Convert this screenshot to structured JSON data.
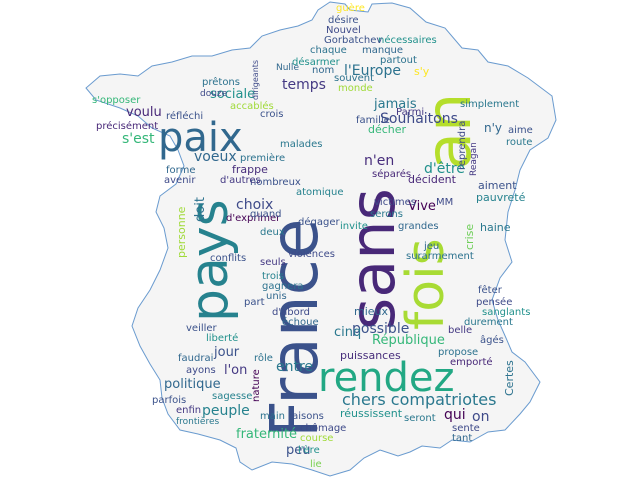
{
  "shape": {
    "name": "france-map-outline",
    "fill": "#f5f5f5",
    "stroke": "#6a9bcf"
  },
  "palette": [
    "#440154",
    "#3b528b",
    "#21918c",
    "#5ec962",
    "#fde725"
  ],
  "words": [
    {
      "t": "France",
      "c": "#3b528b"
    },
    {
      "t": "sans",
      "c": "#482878"
    },
    {
      "t": "fois",
      "c": "#a8db34"
    },
    {
      "t": "an",
      "c": "#b5de2b"
    },
    {
      "t": "pays",
      "c": "#26828e"
    },
    {
      "t": "paix",
      "c": "#31688e"
    },
    {
      "t": "rendez",
      "c": "#22a884"
    },
    {
      "t": "chers compatriotes",
      "c": "#2a788e"
    },
    {
      "t": "l'Europe",
      "c": "#2c728e"
    },
    {
      "t": "Souhaitons",
      "c": "#3e4a89"
    },
    {
      "t": "République",
      "c": "#35b779"
    },
    {
      "t": "possible",
      "c": "#3b528b"
    },
    {
      "t": "jamais",
      "c": "#2a788e"
    },
    {
      "t": "n'en",
      "c": "#472d7b"
    },
    {
      "t": "d'être",
      "c": "#21918c"
    },
    {
      "t": "Vive",
      "c": "#440154"
    },
    {
      "t": "voeux",
      "c": "#31688e"
    },
    {
      "t": "sociale",
      "c": "#21918c"
    },
    {
      "t": "s'est",
      "c": "#35b779"
    },
    {
      "t": "voulu",
      "c": "#482878"
    },
    {
      "t": "temps",
      "c": "#443983"
    },
    {
      "t": "choix",
      "c": "#3e4a89"
    },
    {
      "t": "doit",
      "c": "#2c728e"
    },
    {
      "t": "entre",
      "c": "#2a788e"
    },
    {
      "t": "jour",
      "c": "#3b528b"
    },
    {
      "t": "l'on",
      "c": "#443983"
    },
    {
      "t": "peuple",
      "c": "#26828e"
    },
    {
      "t": "politique",
      "c": "#31688e"
    },
    {
      "t": "puissances",
      "c": "#472d7b"
    },
    {
      "t": "cinq",
      "c": "#2a788e"
    },
    {
      "t": "fraternité",
      "c": "#35b779"
    },
    {
      "t": "peu",
      "c": "#3b528b"
    },
    {
      "t": "réussissent",
      "c": "#21918c"
    },
    {
      "t": "qui",
      "c": "#440154"
    },
    {
      "t": "on",
      "c": "#3e4a89"
    },
    {
      "t": "mieux",
      "c": "#31688e"
    },
    {
      "t": "Certes",
      "c": "#2c728e"
    },
    {
      "t": "crise",
      "c": "#6ece58"
    },
    {
      "t": "haine",
      "c": "#2a788e"
    },
    {
      "t": "aiment",
      "c": "#3b528b"
    },
    {
      "t": "pauvreté",
      "c": "#26828e"
    },
    {
      "t": "décident",
      "c": "#482878"
    },
    {
      "t": "simplement",
      "c": "#2a788e"
    },
    {
      "t": "reprendra",
      "c": "#3e4a89"
    },
    {
      "t": "n'y",
      "c": "#31688e"
    },
    {
      "t": "aime",
      "c": "#3b528b"
    },
    {
      "t": "route",
      "c": "#2a788e"
    },
    {
      "t": "Reagan",
      "c": "#443983"
    },
    {
      "t": "nécessaires",
      "c": "#21918c"
    },
    {
      "t": "désire",
      "c": "#3b528b"
    },
    {
      "t": "chaque",
      "c": "#2c728e"
    },
    {
      "t": "manque",
      "c": "#31688e"
    },
    {
      "t": "Nouvel",
      "c": "#3e4a89"
    },
    {
      "t": "Gorbatchev",
      "c": "#3b528b"
    },
    {
      "t": "désarmer",
      "c": "#21918c"
    },
    {
      "t": "souvent",
      "c": "#2c728e"
    },
    {
      "t": "monde",
      "c": "#a0da39"
    },
    {
      "t": "nom",
      "c": "#31688e"
    },
    {
      "t": "s'y",
      "c": "#fde725"
    },
    {
      "t": "famille",
      "c": "#3b528b"
    },
    {
      "t": "Parmi",
      "c": "#443983"
    },
    {
      "t": "décher",
      "c": "#35b779"
    },
    {
      "t": "frappe",
      "c": "#472d7b"
    },
    {
      "t": "nombreux",
      "c": "#3b528b"
    },
    {
      "t": "atomique",
      "c": "#26828e"
    },
    {
      "t": "séparés",
      "c": "#482878"
    },
    {
      "t": "victimes",
      "c": "#3e4a89"
    },
    {
      "t": "serons",
      "c": "#2a788e"
    },
    {
      "t": "grandes",
      "c": "#31688e"
    },
    {
      "t": "MM",
      "c": "#3e4a89"
    },
    {
      "t": "invite",
      "c": "#21918c"
    },
    {
      "t": "dégager",
      "c": "#3b528b"
    },
    {
      "t": "jeu",
      "c": "#31688e"
    },
    {
      "t": "surarmement",
      "c": "#2c728e"
    },
    {
      "t": "fêter",
      "c": "#3b528b"
    },
    {
      "t": "pensée",
      "c": "#3e4a89"
    },
    {
      "t": "sanglants",
      "c": "#21918c"
    },
    {
      "t": "durement",
      "c": "#2a788e"
    },
    {
      "t": "belle",
      "c": "#443983"
    },
    {
      "t": "âgés",
      "c": "#3b528b"
    },
    {
      "t": "propose",
      "c": "#2c728e"
    },
    {
      "t": "emporté",
      "c": "#482878"
    },
    {
      "t": "sente",
      "c": "#3e4a89"
    },
    {
      "t": "tant",
      "c": "#31688e"
    },
    {
      "t": "seront",
      "c": "#2a788e"
    },
    {
      "t": "chômage",
      "c": "#3e4a89"
    },
    {
      "t": "course",
      "c": "#a0da39"
    },
    {
      "t": "l'ère",
      "c": "#21918c"
    },
    {
      "t": "lie",
      "c": "#7ad151"
    },
    {
      "t": "raisons",
      "c": "#3b528b"
    },
    {
      "t": "main",
      "c": "#2c728e"
    },
    {
      "t": "sagesse",
      "c": "#26828e"
    },
    {
      "t": "parfois",
      "c": "#3b528b"
    },
    {
      "t": "enfin",
      "c": "#443983"
    },
    {
      "t": "frontières",
      "c": "#2a788e"
    },
    {
      "t": "ayons",
      "c": "#3e4a89"
    },
    {
      "t": "faudrai",
      "c": "#31688e"
    },
    {
      "t": "liberté",
      "c": "#21918c"
    },
    {
      "t": "veiller",
      "c": "#3b528b"
    },
    {
      "t": "rôle",
      "c": "#2c728e"
    },
    {
      "t": "nature",
      "c": "#440154"
    },
    {
      "t": "d'abord",
      "c": "#3e4a89"
    },
    {
      "t": "échoue",
      "c": "#31688e"
    },
    {
      "t": "conflits",
      "c": "#3b528b"
    },
    {
      "t": "seuls",
      "c": "#443983"
    },
    {
      "t": "gagnera",
      "c": "#2c728e"
    },
    {
      "t": "trois",
      "c": "#26828e"
    },
    {
      "t": "unis",
      "c": "#31688e"
    },
    {
      "t": "part",
      "c": "#3b528b"
    },
    {
      "t": "violences",
      "c": "#3e4a89"
    },
    {
      "t": "deux",
      "c": "#2a788e"
    },
    {
      "t": "d'exprimer",
      "c": "#440154"
    },
    {
      "t": "quand",
      "c": "#3b528b"
    },
    {
      "t": "première",
      "c": "#2c728e"
    },
    {
      "t": "forme",
      "c": "#31688e"
    },
    {
      "t": "avenir",
      "c": "#3e4a89"
    },
    {
      "t": "d'autres",
      "c": "#443983"
    },
    {
      "t": "accablés",
      "c": "#a0da39"
    },
    {
      "t": "crois",
      "c": "#3b528b"
    },
    {
      "t": "malades",
      "c": "#2a788e"
    },
    {
      "t": "précisément",
      "c": "#482878"
    },
    {
      "t": "réfléchi",
      "c": "#3b528b"
    },
    {
      "t": "s'opposer",
      "c": "#35b779"
    },
    {
      "t": "prêtons",
      "c": "#2c728e"
    },
    {
      "t": "douze",
      "c": "#3e4a89"
    },
    {
      "t": "Nulle",
      "c": "#31688e"
    },
    {
      "t": "guère",
      "c": "#fde725"
    },
    {
      "t": "partout",
      "c": "#2c728e"
    },
    {
      "t": "personne",
      "c": "#a0da39"
    },
    {
      "t": "dirigeants",
      "c": "#3e4a89"
    }
  ]
}
